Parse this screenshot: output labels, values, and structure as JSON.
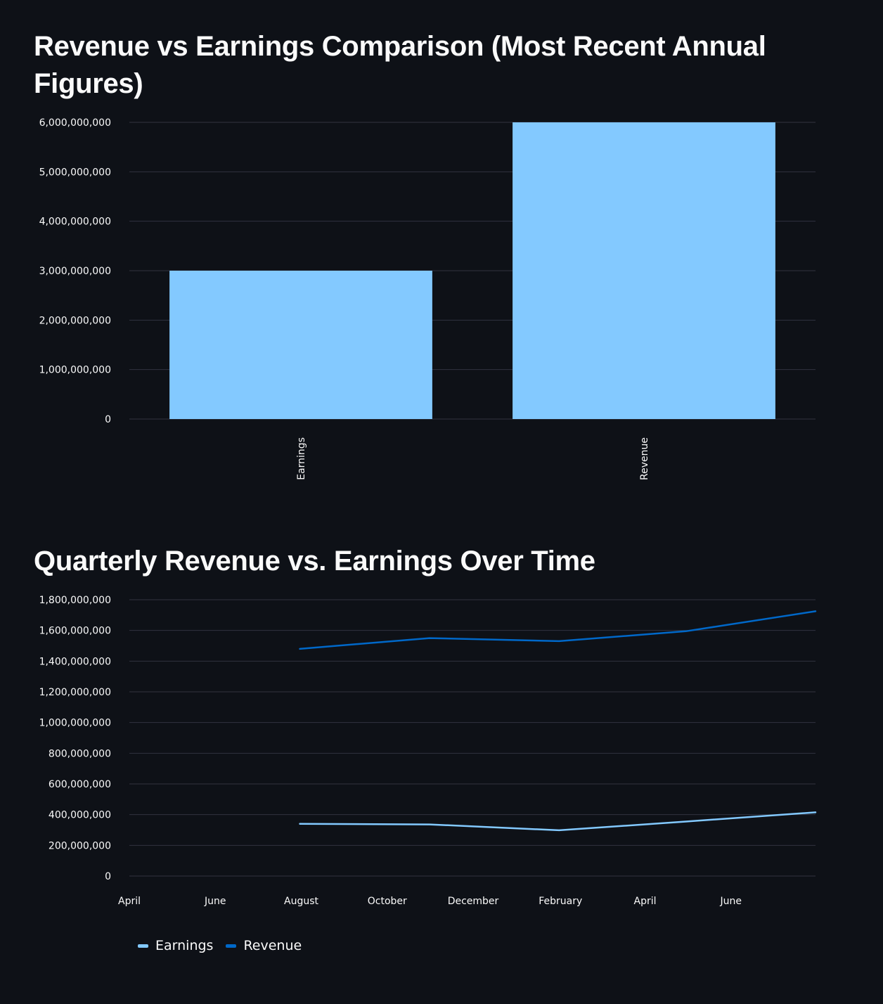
{
  "colors": {
    "background": "#0e1117",
    "grid": "#31333f",
    "text": "#fafafa",
    "earnings": "#83c9ff",
    "revenue": "#0068c9"
  },
  "chart_data": [
    {
      "type": "bar",
      "title": "Revenue vs Earnings Comparison (Most Recent Annual Figures)",
      "categories": [
        "Earnings",
        "Revenue"
      ],
      "values": [
        3000000000,
        6000000000
      ],
      "ylim": [
        0,
        6000000000
      ],
      "yticks": [
        "0",
        "1,000,000,000",
        "2,000,000,000",
        "3,000,000,000",
        "4,000,000,000",
        "5,000,000,000",
        "6,000,000,000"
      ],
      "ytick_values": [
        0,
        1000000000,
        2000000000,
        3000000000,
        4000000000,
        5000000000,
        6000000000
      ],
      "xlabel": "",
      "ylabel": "",
      "grid": true
    },
    {
      "type": "line",
      "title": "Quarterly Revenue vs. Earnings Over Time",
      "x": [
        "2023-07-31",
        "2023-10-31",
        "2024-01-31",
        "2024-04-30",
        "2024-07-31"
      ],
      "xlim": [
        "2023-04-01",
        "2024-07-31"
      ],
      "xticks": [
        "April",
        "June",
        "August",
        "October",
        "December",
        "February",
        "April",
        "June"
      ],
      "xtick_dates": [
        "2023-04-01",
        "2023-06-01",
        "2023-08-01",
        "2023-10-01",
        "2023-12-01",
        "2024-02-01",
        "2024-04-01",
        "2024-06-01"
      ],
      "series": [
        {
          "name": "Earnings",
          "values": [
            340000000,
            336000000,
            298000000,
            355000000,
            415000000
          ]
        },
        {
          "name": "Revenue",
          "values": [
            1480000000,
            1550000000,
            1530000000,
            1595000000,
            1725000000
          ]
        }
      ],
      "ylim": [
        0,
        1800000000
      ],
      "yticks": [
        "0",
        "200,000,000",
        "400,000,000",
        "600,000,000",
        "800,000,000",
        "1,000,000,000",
        "1,200,000,000",
        "1,400,000,000",
        "1,600,000,000",
        "1,800,000,000"
      ],
      "ytick_values": [
        0,
        200000000,
        400000000,
        600000000,
        800000000,
        1000000000,
        1200000000,
        1400000000,
        1600000000,
        1800000000
      ],
      "legend": "bottom-left",
      "grid": true
    }
  ]
}
